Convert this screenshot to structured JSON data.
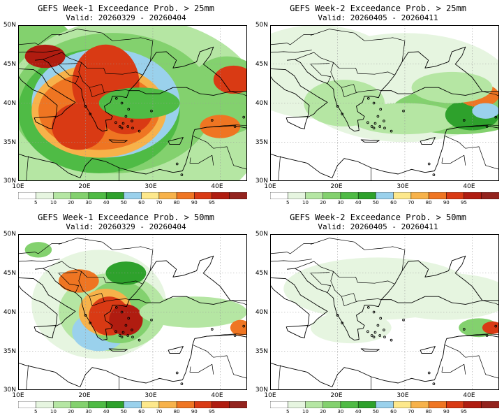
{
  "colors": {
    "scale": [
      "#ffffff",
      "#e6f5e0",
      "#b5e6a3",
      "#83d16e",
      "#4fbb45",
      "#2ea12c",
      "#9ad1ec",
      "#fde88c",
      "#f7b24a",
      "#ef7522",
      "#d93a14",
      "#b01c10",
      "#93231e"
    ],
    "land_outline": "#000000",
    "grid": "#999999"
  },
  "colorbar": {
    "ticks": [
      "5",
      "10",
      "20",
      "30",
      "40",
      "50",
      "60",
      "70",
      "80",
      "90",
      "95"
    ]
  },
  "axes": {
    "lat_labels": [
      "50N",
      "45N",
      "40N",
      "35N",
      "30N"
    ],
    "lon_labels": [
      "10E",
      "20E",
      "30E",
      "40E"
    ]
  },
  "panels": [
    {
      "id": "p1",
      "title": "GEFS Week-1 Exceedance Prob. > 25mm",
      "valid": "Valid: 20260329 - 20260404",
      "intensity": "high"
    },
    {
      "id": "p2",
      "title": "GEFS Week-2 Exceedance Prob. > 25mm",
      "valid": "Valid: 20260405 - 20260411",
      "intensity": "low"
    },
    {
      "id": "p3",
      "title": "GEFS Week-1 Exceedance Prob. > 50mm",
      "valid": "Valid: 20260329 - 20260404",
      "intensity": "mid"
    },
    {
      "id": "p4",
      "title": "GEFS Week-2 Exceedance Prob. > 50mm",
      "valid": "Valid: 20260405 - 20260411",
      "intensity": "vlow"
    }
  ]
}
